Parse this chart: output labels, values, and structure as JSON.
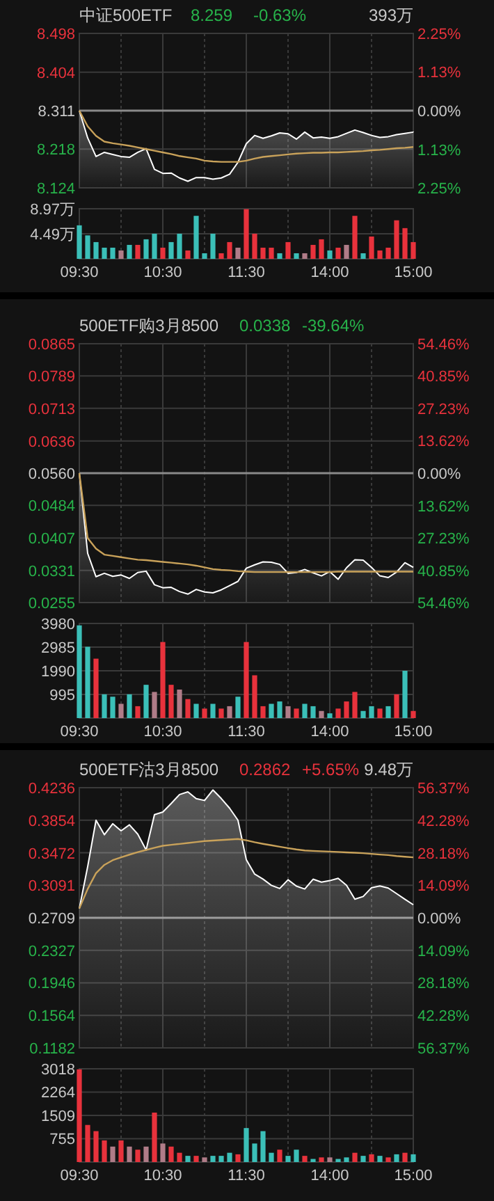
{
  "chart_data": [
    {
      "type": "line",
      "title": "中证500ETF",
      "annotations": [
        "8.259",
        "-0.63%",
        "393万"
      ],
      "categories": [
        null,
        null,
        null,
        null,
        null,
        null,
        null,
        null,
        null,
        null,
        null,
        null,
        null,
        null,
        null,
        null,
        null,
        null,
        null,
        null,
        null,
        null,
        null,
        null,
        null,
        null,
        null,
        null,
        null,
        null,
        null,
        null,
        null,
        null,
        null,
        null,
        null,
        null,
        null,
        null,
        null
      ],
      "ylim": [
        8.124,
        8.498
      ],
      "yticks": [
        8.124,
        8.218,
        8.311,
        8.404,
        8.498
      ],
      "y2lim": [
        -2.25,
        2.25
      ],
      "y2ticks": [
        {
          "value": -2.25,
          "label": "2.25%"
        },
        {
          "value": -1.13,
          "label": "1.13%"
        },
        {
          "value": 0,
          "label": "0.00%"
        },
        {
          "value": 1.13,
          "label": "1.13%"
        },
        {
          "value": 2.25,
          "label": "2.25%"
        }
      ],
      "grid": true,
      "tick_labels": "y",
      "ref_lines": [
        {
          "axis": "y",
          "value": 8.311
        }
      ],
      "series": [
        {
          "type": "area",
          "color": "#ffffff",
          "values": [
            8.311,
            8.245,
            8.2,
            8.21,
            8.205,
            8.2,
            8.198,
            8.21,
            8.219,
            8.169,
            8.159,
            8.16,
            8.148,
            8.14,
            8.149,
            8.149,
            8.145,
            8.148,
            8.157,
            8.186,
            8.231,
            8.251,
            8.244,
            8.25,
            8.257,
            8.255,
            8.242,
            8.259,
            8.245,
            8.247,
            8.244,
            8.248,
            8.256,
            8.264,
            8.258,
            8.251,
            8.246,
            8.248,
            8.253,
            8.256,
            8.259
          ]
        },
        {
          "type": "line",
          "color": "#c9a25a",
          "values": [
            8.311,
            8.273,
            8.25,
            8.236,
            8.232,
            8.229,
            8.226,
            8.222,
            8.218,
            8.214,
            8.21,
            8.206,
            8.201,
            8.198,
            8.195,
            8.19,
            8.188,
            8.187,
            8.187,
            8.187,
            8.19,
            8.195,
            8.199,
            8.201,
            8.203,
            8.205,
            8.207,
            8.208,
            8.209,
            8.209,
            8.21,
            8.21,
            8.211,
            8.212,
            8.213,
            8.215,
            8.216,
            8.218,
            8.22,
            8.221,
            8.223
          ]
        }
      ]
    },
    {
      "type": "bar",
      "categories": [
        "09:30",
        null,
        null,
        null,
        null,
        null,
        null,
        null,
        null,
        null,
        "10:30",
        null,
        null,
        null,
        null,
        null,
        null,
        null,
        null,
        null,
        "11:30",
        null,
        null,
        null,
        null,
        null,
        null,
        null,
        null,
        null,
        "14:00",
        null,
        null,
        null,
        null,
        null,
        null,
        null,
        null,
        null,
        "15:00"
      ],
      "ylim": [
        0,
        8.97
      ],
      "yticks": [
        {
          "value": 4.49,
          "label": "4.49万"
        },
        {
          "value": 8.97,
          "label": "8.97万"
        }
      ],
      "grid": true,
      "values": [
        6.0,
        4.2,
        3.0,
        2.0,
        2.0,
        1.5,
        2.5,
        2.5,
        3.5,
        4.5,
        2.0,
        3.0,
        4.5,
        1.5,
        7.7,
        1.0,
        4.5,
        1.0,
        3.0,
        2.0,
        8.9,
        4.5,
        2.0,
        2.0,
        1.0,
        3.0,
        1.0,
        1.0,
        2.5,
        3.5,
        1.5,
        2.0,
        2.5,
        7.7,
        1.0,
        4.0,
        1.5,
        2.0,
        6.9,
        5.5,
        3.0
      ],
      "colors": [
        "#3bbfb8",
        "#3bbfb8",
        "#3bbfb8",
        "#3bbfb8",
        "#3bbfb8",
        "#b07c88",
        "#3bbfb8",
        "#e8323c",
        "#3bbfb8",
        "#3bbfb8",
        "#e8323c",
        "#3bbfb8",
        "#3bbfb8",
        "#e8323c",
        "#3bbfb8",
        "#3bbfb8",
        "#3bbfb8",
        "#e8323c",
        "#e8323c",
        "#b07c88",
        "#e8323c",
        "#e8323c",
        "#e8323c",
        "#e8323c",
        "#3bbfb8",
        "#e8323c",
        "#3bbfb8",
        "#b07c88",
        "#e8323c",
        "#e8323c",
        "#3bbfb8",
        "#e8323c",
        "#b07c88",
        "#e8323c",
        "#3bbfb8",
        "#e8323c",
        "#e8323c",
        "#e8323c",
        "#e8323c",
        "#e8323c",
        "#e8323c"
      ]
    },
    {
      "type": "line",
      "title": "500ETF购3月8500",
      "annotations": [
        "0.0338",
        "-39.64%"
      ],
      "categories": [
        null,
        null,
        null,
        null,
        null,
        null,
        null,
        null,
        null,
        null,
        null,
        null,
        null,
        null,
        null,
        null,
        null,
        null,
        null,
        null,
        null,
        null,
        null,
        null,
        null,
        null,
        null,
        null,
        null,
        null,
        null,
        null,
        null,
        null,
        null,
        null,
        null,
        null,
        null,
        null,
        null
      ],
      "ylim": [
        0.0255,
        0.0865
      ],
      "yticks": [
        0.0255,
        0.0331,
        0.0407,
        0.0484,
        {
          "value": 0.056,
          "label": "0.0560"
        },
        0.0636,
        0.0713,
        0.0789,
        0.0865
      ],
      "y2lim": [
        -54.46,
        54.46
      ],
      "y2ticks": [
        {
          "value": -54.46,
          "label": "54.46%"
        },
        {
          "value": -40.85,
          "label": "40.85%"
        },
        {
          "value": -27.23,
          "label": "27.23%"
        },
        {
          "value": -13.62,
          "label": "13.62%"
        },
        {
          "value": 0,
          "label": "0.00%"
        },
        {
          "value": 13.62,
          "label": "13.62%"
        },
        {
          "value": 27.23,
          "label": "27.23%"
        },
        {
          "value": 40.85,
          "label": "40.85%"
        },
        {
          "value": 54.46,
          "label": "54.46%"
        }
      ],
      "grid": true,
      "tick_labels": "y",
      "ref_lines": [
        {
          "axis": "y",
          "value": 0.056
        }
      ],
      "series": [
        {
          "type": "area",
          "color": "#ffffff",
          "values": [
            0.056,
            0.0371,
            0.0316,
            0.0324,
            0.0317,
            0.032,
            0.0312,
            0.0326,
            0.0329,
            0.0297,
            0.029,
            0.0291,
            0.0281,
            0.0275,
            0.0286,
            0.028,
            0.0278,
            0.0285,
            0.0295,
            0.0305,
            0.0336,
            0.0344,
            0.0351,
            0.035,
            0.0345,
            0.0324,
            0.0326,
            0.0333,
            0.0325,
            0.0318,
            0.0328,
            0.031,
            0.0337,
            0.0356,
            0.0355,
            0.0338,
            0.0318,
            0.0314,
            0.0327,
            0.0349,
            0.0338
          ]
        },
        {
          "type": "line",
          "color": "#c9a25a",
          "values": [
            0.056,
            0.0407,
            0.0382,
            0.0368,
            0.0365,
            0.0362,
            0.0359,
            0.0356,
            0.0355,
            0.0353,
            0.0351,
            0.0349,
            0.0347,
            0.0345,
            0.0342,
            0.0338,
            0.0334,
            0.0332,
            0.0331,
            0.0329,
            0.0328,
            0.0327,
            0.0327,
            0.0327,
            0.0327,
            0.0327,
            0.0327,
            0.0327,
            0.0327,
            0.0327,
            0.0327,
            0.0328,
            0.0328,
            0.0328,
            0.0328,
            0.0328,
            0.0328,
            0.0328,
            0.0328,
            0.0328,
            0.0328
          ]
        }
      ]
    },
    {
      "type": "bar",
      "categories": [
        "09:30",
        null,
        null,
        null,
        null,
        null,
        null,
        null,
        null,
        null,
        "10:30",
        null,
        null,
        null,
        null,
        null,
        null,
        null,
        null,
        null,
        "11:30",
        null,
        null,
        null,
        null,
        null,
        null,
        null,
        null,
        null,
        "14:00",
        null,
        null,
        null,
        null,
        null,
        null,
        null,
        null,
        null,
        "15:00"
      ],
      "ylim": [
        0,
        3980
      ],
      "yticks": [
        995,
        1990,
        2985,
        3980
      ],
      "grid": true,
      "values": [
        3900,
        3000,
        2500,
        1000,
        900,
        600,
        1000,
        500,
        1400,
        1100,
        3200,
        1400,
        1200,
        800,
        600,
        400,
        600,
        400,
        500,
        900,
        3200,
        1800,
        500,
        600,
        700,
        500,
        400,
        600,
        500,
        300,
        200,
        400,
        700,
        1100,
        300,
        500,
        400,
        500,
        1000,
        1990,
        300
      ],
      "colors": [
        "#3bbfb8",
        "#3bbfb8",
        "#e8323c",
        "#3bbfb8",
        "#3bbfb8",
        "#b07c88",
        "#3bbfb8",
        "#e8323c",
        "#3bbfb8",
        "#b07c88",
        "#e8323c",
        "#e8323c",
        "#b07c88",
        "#e8323c",
        "#3bbfb8",
        "#e8323c",
        "#3bbfb8",
        "#e8323c",
        "#b07c88",
        "#3bbfb8",
        "#e8323c",
        "#e8323c",
        "#e8323c",
        "#3bbfb8",
        "#3bbfb8",
        "#b07c88",
        "#e8323c",
        "#3bbfb8",
        "#3bbfb8",
        "#b07c88",
        "#3bbfb8",
        "#e8323c",
        "#e8323c",
        "#e8323c",
        "#3bbfb8",
        "#3bbfb8",
        "#e8323c",
        "#3bbfb8",
        "#e8323c",
        "#3bbfb8",
        "#e8323c"
      ]
    },
    {
      "type": "line",
      "title": "500ETF沽3月8500",
      "annotations": [
        "0.2862",
        "+5.65%",
        "9.48万"
      ],
      "categories": [
        null,
        null,
        null,
        null,
        null,
        null,
        null,
        null,
        null,
        null,
        null,
        null,
        null,
        null,
        null,
        null,
        null,
        null,
        null,
        null,
        null,
        null,
        null,
        null,
        null,
        null,
        null,
        null,
        null,
        null,
        null,
        null,
        null,
        null,
        null,
        null,
        null,
        null,
        null,
        null,
        null
      ],
      "ylim": [
        0.1182,
        0.4236
      ],
      "yticks": [
        0.1182,
        0.1564,
        0.1946,
        0.2327,
        0.2709,
        0.3091,
        0.3472,
        0.3854,
        0.4236
      ],
      "y2lim": [
        -56.37,
        56.37
      ],
      "y2ticks": [
        {
          "value": -56.37,
          "label": "56.37%"
        },
        {
          "value": -42.28,
          "label": "42.28%"
        },
        {
          "value": -28.18,
          "label": "28.18%"
        },
        {
          "value": -14.09,
          "label": "14.09%"
        },
        {
          "value": 0,
          "label": "0.00%"
        },
        {
          "value": 14.09,
          "label": "14.09%"
        },
        {
          "value": 28.18,
          "label": "28.18%"
        },
        {
          "value": 42.28,
          "label": "42.28%"
        },
        {
          "value": 56.37,
          "label": "56.37%"
        }
      ],
      "grid": true,
      "tick_labels": "y",
      "ref_lines": [
        {
          "axis": "y",
          "value": 0.2709
        }
      ],
      "series": [
        {
          "type": "area",
          "color": "#ffffff",
          "values": [
            0.2818,
            0.3309,
            0.3854,
            0.3684,
            0.3813,
            0.373,
            0.38,
            0.3691,
            0.3505,
            0.392,
            0.395,
            0.405,
            0.4155,
            0.4187,
            0.4107,
            0.4086,
            0.4209,
            0.4109,
            0.3995,
            0.3854,
            0.339,
            0.3222,
            0.3163,
            0.309,
            0.3053,
            0.3155,
            0.3081,
            0.3047,
            0.3162,
            0.3127,
            0.3145,
            0.3173,
            0.3091,
            0.2927,
            0.2959,
            0.3063,
            0.3082,
            0.3058,
            0.2993,
            0.2927,
            0.2862
          ]
        },
        {
          "type": "line",
          "color": "#c9a25a",
          "values": [
            0.2818,
            0.3047,
            0.3233,
            0.333,
            0.3385,
            0.3418,
            0.345,
            0.348,
            0.3505,
            0.353,
            0.3554,
            0.3565,
            0.3576,
            0.3587,
            0.3598,
            0.3609,
            0.3615,
            0.3622,
            0.3628,
            0.3634,
            0.3618,
            0.3596,
            0.3577,
            0.356,
            0.3543,
            0.3527,
            0.3511,
            0.3499,
            0.3494,
            0.349,
            0.3486,
            0.3482,
            0.3477,
            0.3473,
            0.3467,
            0.3459,
            0.3451,
            0.3445,
            0.3434,
            0.3426,
            0.3418
          ]
        }
      ]
    },
    {
      "type": "bar",
      "categories": [
        "09:30",
        null,
        null,
        null,
        null,
        null,
        null,
        null,
        null,
        null,
        "10:30",
        null,
        null,
        null,
        null,
        null,
        null,
        null,
        null,
        null,
        "11:30",
        null,
        null,
        null,
        null,
        null,
        null,
        null,
        null,
        null,
        "14:00",
        null,
        null,
        null,
        null,
        null,
        null,
        null,
        null,
        null,
        "15:00"
      ],
      "ylim": [
        0,
        3018
      ],
      "yticks": [
        755,
        1509,
        2264,
        3018
      ],
      "grid": true,
      "values": [
        3000,
        1200,
        1000,
        700,
        500,
        700,
        500,
        400,
        500,
        1600,
        600,
        500,
        300,
        200,
        200,
        150,
        200,
        200,
        300,
        250,
        1100,
        600,
        1000,
        300,
        400,
        200,
        400,
        200,
        100,
        150,
        150,
        100,
        150,
        300,
        200,
        250,
        200,
        150,
        250,
        300,
        250
      ],
      "colors": [
        "#e8323c",
        "#e8323c",
        "#e8323c",
        "#e8323c",
        "#b07c88",
        "#e8323c",
        "#b07c88",
        "#e8323c",
        "#b07c88",
        "#e8323c",
        "#b07c88",
        "#e8323c",
        "#e8323c",
        "#3bbfb8",
        "#e8323c",
        "#b07c88",
        "#3bbfb8",
        "#3bbfb8",
        "#3bbfb8",
        "#e8323c",
        "#3bbfb8",
        "#3bbfb8",
        "#3bbfb8",
        "#3bbfb8",
        "#e8323c",
        "#3bbfb8",
        "#3bbfb8",
        "#e8323c",
        "#3bbfb8",
        "#e8323c",
        "#b07c88",
        "#3bbfb8",
        "#3bbfb8",
        "#e8323c",
        "#3bbfb8",
        "#e8323c",
        "#3bbfb8",
        "#e8323c",
        "#3bbfb8",
        "#e8323c",
        "#3bbfb8"
      ]
    }
  ]
}
